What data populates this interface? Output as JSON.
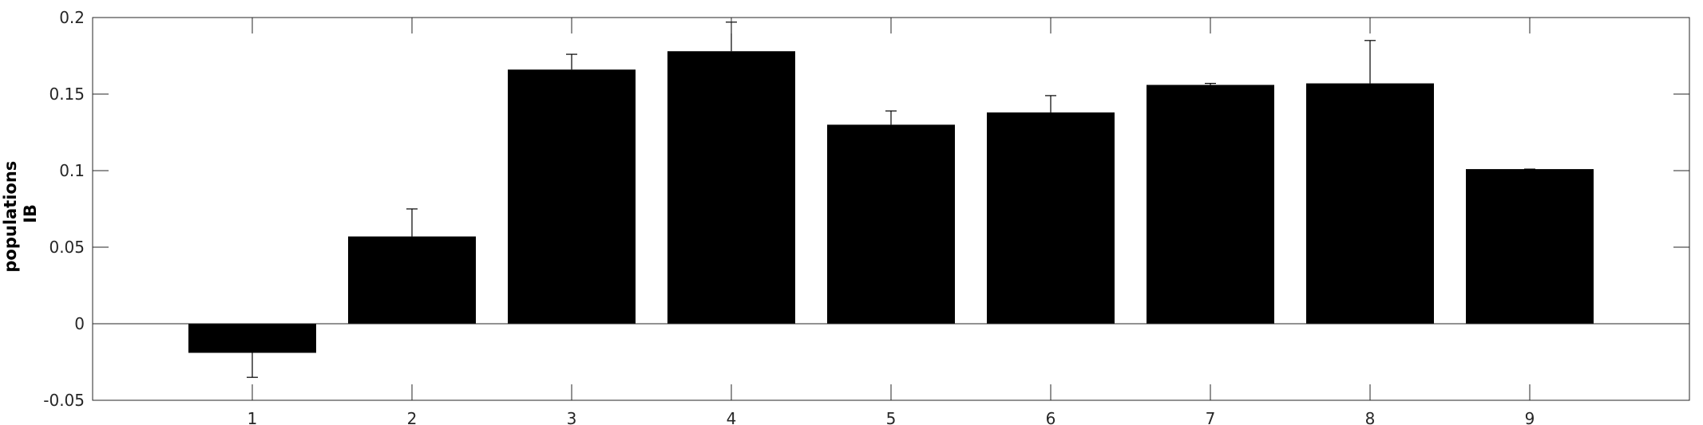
{
  "chart_data": {
    "type": "bar",
    "categories": [
      "1",
      "2",
      "3",
      "4",
      "5",
      "6",
      "7",
      "8",
      "9"
    ],
    "values": [
      -0.019,
      0.057,
      0.166,
      0.178,
      0.13,
      0.138,
      0.156,
      0.157,
      0.101
    ],
    "error_upper": [
      -0.035,
      0.075,
      0.176,
      0.197,
      0.139,
      0.149,
      0.157,
      0.185,
      0.101
    ],
    "ylabel": [
      "populations",
      "IB"
    ],
    "ylim": [
      -0.05,
      0.2
    ],
    "yticks": [
      -0.05,
      0,
      0.05,
      0.1,
      0.15,
      0.2
    ],
    "ytick_labels": [
      "-0.05",
      "0",
      "0.05",
      "0.1",
      "0.15",
      "0.2"
    ],
    "xlim": [
      0,
      10
    ],
    "bar_color": "#000000",
    "grid": false,
    "zero_line": true
  }
}
